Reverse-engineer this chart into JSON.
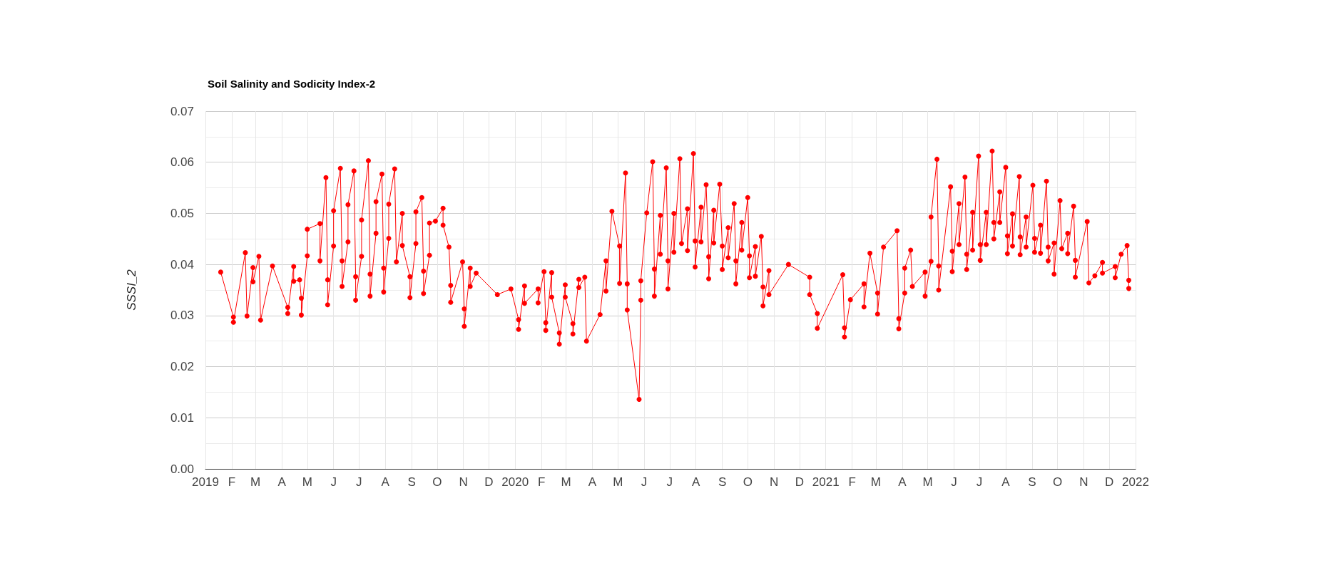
{
  "chart_data": {
    "type": "line",
    "title": "Soil Salinity and Sodicity Index-2",
    "ylabel": "SSSI_2",
    "x": [
      "2019-01-19",
      "2019-02-03",
      "2019-02-03",
      "2019-02-17",
      "2019-02-19",
      "2019-02-26",
      "2019-02-26",
      "2019-03-05",
      "2019-03-07",
      "2019-03-21",
      "2019-04-08",
      "2019-04-08",
      "2019-04-15",
      "2019-04-15",
      "2019-04-22",
      "2019-04-24",
      "2019-04-24",
      "2019-05-01",
      "2019-05-01",
      "2019-05-16",
      "2019-05-16",
      "2019-05-23",
      "2019-05-25",
      "2019-05-25",
      "2019-06-01",
      "2019-06-01",
      "2019-06-09",
      "2019-06-11",
      "2019-06-11",
      "2019-06-18",
      "2019-06-18",
      "2019-06-25",
      "2019-06-27",
      "2019-06-27",
      "2019-07-04",
      "2019-07-04",
      "2019-07-12",
      "2019-07-14",
      "2019-07-14",
      "2019-07-21",
      "2019-07-21",
      "2019-07-28",
      "2019-07-30",
      "2019-07-30",
      "2019-08-05",
      "2019-08-05",
      "2019-08-12",
      "2019-08-14",
      "2019-08-21",
      "2019-08-21",
      "2019-08-30",
      "2019-08-30",
      "2019-09-06",
      "2019-09-06",
      "2019-09-13",
      "2019-09-15",
      "2019-09-15",
      "2019-09-22",
      "2019-09-22",
      "2019-09-29",
      "2019-10-08",
      "2019-10-08",
      "2019-10-15",
      "2019-10-17",
      "2019-10-17",
      "2019-10-31",
      "2019-11-02",
      "2019-11-02",
      "2019-11-09",
      "2019-11-09",
      "2019-11-16",
      "2019-12-11",
      "2019-12-27",
      "2020-01-05",
      "2020-01-05",
      "2020-01-12",
      "2020-01-12",
      "2020-01-28",
      "2020-01-28",
      "2020-02-04",
      "2020-02-06",
      "2020-02-06",
      "2020-02-13",
      "2020-02-13",
      "2020-02-22",
      "2020-02-22",
      "2020-02-29",
      "2020-02-29",
      "2020-03-09",
      "2020-03-09",
      "2020-03-16",
      "2020-03-16",
      "2020-03-23",
      "2020-03-25",
      "2020-04-10",
      "2020-04-17",
      "2020-04-17",
      "2020-04-24",
      "2020-05-03",
      "2020-05-03",
      "2020-05-10",
      "2020-05-12",
      "2020-05-12",
      "2020-05-26",
      "2020-05-28",
      "2020-05-28",
      "2020-06-04",
      "2020-06-11",
      "2020-06-13",
      "2020-06-13",
      "2020-06-20",
      "2020-06-20",
      "2020-06-27",
      "2020-06-29",
      "2020-06-29",
      "2020-07-06",
      "2020-07-06",
      "2020-07-13",
      "2020-07-15",
      "2020-07-22",
      "2020-07-22",
      "2020-07-29",
      "2020-07-31",
      "2020-07-31",
      "2020-08-07",
      "2020-08-07",
      "2020-08-13",
      "2020-08-16",
      "2020-08-16",
      "2020-08-22",
      "2020-08-22",
      "2020-08-29",
      "2020-09-01",
      "2020-09-01",
      "2020-09-08",
      "2020-09-08",
      "2020-09-15",
      "2020-09-17",
      "2020-09-17",
      "2020-09-24",
      "2020-09-24",
      "2020-10-01",
      "2020-10-03",
      "2020-10-03",
      "2020-10-10",
      "2020-10-10",
      "2020-10-17",
      "2020-10-19",
      "2020-10-19",
      "2020-10-26",
      "2020-10-26",
      "2020-11-18",
      "2020-12-13",
      "2020-12-13",
      "2020-12-22",
      "2020-12-22",
      "2021-01-21",
      "2021-01-23",
      "2021-01-23",
      "2021-01-30",
      "2021-02-15",
      "2021-02-15",
      "2021-02-22",
      "2021-03-03",
      "2021-03-03",
      "2021-03-10",
      "2021-03-26",
      "2021-03-28",
      "2021-03-28",
      "2021-04-04",
      "2021-04-04",
      "2021-04-11",
      "2021-04-13",
      "2021-04-28",
      "2021-04-28",
      "2021-05-05",
      "2021-05-05",
      "2021-05-12",
      "2021-05-14",
      "2021-05-14",
      "2021-05-28",
      "2021-05-30",
      "2021-05-30",
      "2021-06-07",
      "2021-06-07",
      "2021-06-14",
      "2021-06-16",
      "2021-06-16",
      "2021-06-23",
      "2021-06-23",
      "2021-06-30",
      "2021-07-02",
      "2021-07-02",
      "2021-07-09",
      "2021-07-09",
      "2021-07-16",
      "2021-07-18",
      "2021-07-18",
      "2021-07-25",
      "2021-07-25",
      "2021-08-01",
      "2021-08-03",
      "2021-08-03",
      "2021-08-09",
      "2021-08-09",
      "2021-08-17",
      "2021-08-18",
      "2021-08-18",
      "2021-08-25",
      "2021-08-25",
      "2021-09-02",
      "2021-09-04",
      "2021-09-04",
      "2021-09-11",
      "2021-09-11",
      "2021-09-18",
      "2021-09-20",
      "2021-09-20",
      "2021-09-27",
      "2021-09-27",
      "2021-10-04",
      "2021-10-06",
      "2021-10-13",
      "2021-10-13",
      "2021-10-20",
      "2021-10-22",
      "2021-10-22",
      "2021-11-05",
      "2021-11-07",
      "2021-11-14",
      "2021-11-23",
      "2021-11-23",
      "2021-12-08",
      "2021-12-08",
      "2021-12-15",
      "2021-12-22",
      "2021-12-24",
      "2021-12-24"
    ],
    "series": [
      {
        "color": "#ff0000",
        "values": [
          0.0385,
          0.0297,
          0.0287,
          0.0423,
          0.0299,
          0.0394,
          0.0366,
          0.0416,
          0.0291,
          0.0397,
          0.0316,
          0.0304,
          0.0396,
          0.0367,
          0.037,
          0.0334,
          0.0301,
          0.0417,
          0.0469,
          0.048,
          0.0407,
          0.057,
          0.037,
          0.0321,
          0.0436,
          0.0505,
          0.0588,
          0.0407,
          0.0357,
          0.0444,
          0.0517,
          0.0583,
          0.0376,
          0.033,
          0.0416,
          0.0487,
          0.0603,
          0.0381,
          0.0338,
          0.0461,
          0.0523,
          0.0577,
          0.0393,
          0.0346,
          0.0451,
          0.0518,
          0.0587,
          0.0405,
          0.05,
          0.0437,
          0.0376,
          0.0335,
          0.0441,
          0.0503,
          0.0531,
          0.0387,
          0.0343,
          0.0418,
          0.0481,
          0.0485,
          0.051,
          0.0477,
          0.0434,
          0.0359,
          0.0326,
          0.0405,
          0.0313,
          0.0279,
          0.0393,
          0.0357,
          0.0383,
          0.0341,
          0.0352,
          0.0292,
          0.0273,
          0.0358,
          0.0324,
          0.0352,
          0.0325,
          0.0386,
          0.0286,
          0.0271,
          0.0384,
          0.0336,
          0.0266,
          0.0244,
          0.036,
          0.0336,
          0.0284,
          0.0264,
          0.0371,
          0.0355,
          0.0375,
          0.025,
          0.0302,
          0.0407,
          0.0348,
          0.0504,
          0.0436,
          0.0363,
          0.0579,
          0.0362,
          0.0311,
          0.0136,
          0.033,
          0.0368,
          0.0501,
          0.0601,
          0.0391,
          0.0338,
          0.0496,
          0.042,
          0.0589,
          0.0407,
          0.0352,
          0.05,
          0.0424,
          0.0607,
          0.0441,
          0.0509,
          0.0427,
          0.0617,
          0.0446,
          0.0395,
          0.0512,
          0.0444,
          0.0556,
          0.0415,
          0.0372,
          0.0506,
          0.0442,
          0.0557,
          0.0436,
          0.039,
          0.0472,
          0.0413,
          0.0519,
          0.0407,
          0.0362,
          0.0482,
          0.0428,
          0.0531,
          0.0417,
          0.0374,
          0.0435,
          0.0377,
          0.0455,
          0.0356,
          0.0319,
          0.0388,
          0.0341,
          0.04,
          0.0375,
          0.0341,
          0.0304,
          0.0275,
          0.038,
          0.0276,
          0.0258,
          0.0331,
          0.0362,
          0.0317,
          0.0422,
          0.0344,
          0.0303,
          0.0434,
          0.0466,
          0.0294,
          0.0274,
          0.0344,
          0.0393,
          0.0428,
          0.0357,
          0.0385,
          0.0338,
          0.0406,
          0.0493,
          0.0606,
          0.0397,
          0.035,
          0.0552,
          0.0426,
          0.0386,
          0.0519,
          0.0439,
          0.0571,
          0.042,
          0.039,
          0.0502,
          0.0428,
          0.0612,
          0.0439,
          0.0408,
          0.0502,
          0.0439,
          0.0622,
          0.0482,
          0.045,
          0.0542,
          0.0482,
          0.059,
          0.0456,
          0.0421,
          0.0499,
          0.0436,
          0.0572,
          0.0454,
          0.0419,
          0.0493,
          0.0434,
          0.0555,
          0.0451,
          0.0424,
          0.0477,
          0.0422,
          0.0563,
          0.0434,
          0.0407,
          0.0442,
          0.0381,
          0.0525,
          0.0431,
          0.0461,
          0.0421,
          0.0514,
          0.0408,
          0.0375,
          0.0484,
          0.0364,
          0.0378,
          0.0404,
          0.0383,
          0.0396,
          0.0374,
          0.042,
          0.0437,
          0.0369,
          0.0353
        ]
      }
    ],
    "xlim": [
      "2019-01-01",
      "2022-01-01"
    ],
    "xticks": [
      {
        "value": "2019-01-01",
        "label": "2019"
      },
      {
        "value": "2019-02-01",
        "label": "F"
      },
      {
        "value": "2019-03-01",
        "label": "M"
      },
      {
        "value": "2019-04-01",
        "label": "A"
      },
      {
        "value": "2019-05-01",
        "label": "M"
      },
      {
        "value": "2019-06-01",
        "label": "J"
      },
      {
        "value": "2019-07-01",
        "label": "J"
      },
      {
        "value": "2019-08-01",
        "label": "A"
      },
      {
        "value": "2019-09-01",
        "label": "S"
      },
      {
        "value": "2019-10-01",
        "label": "O"
      },
      {
        "value": "2019-11-01",
        "label": "N"
      },
      {
        "value": "2019-12-01",
        "label": "D"
      },
      {
        "value": "2020-01-01",
        "label": "2020"
      },
      {
        "value": "2020-02-01",
        "label": "F"
      },
      {
        "value": "2020-03-01",
        "label": "M"
      },
      {
        "value": "2020-04-01",
        "label": "A"
      },
      {
        "value": "2020-05-01",
        "label": "M"
      },
      {
        "value": "2020-06-01",
        "label": "J"
      },
      {
        "value": "2020-07-01",
        "label": "J"
      },
      {
        "value": "2020-08-01",
        "label": "A"
      },
      {
        "value": "2020-09-01",
        "label": "S"
      },
      {
        "value": "2020-10-01",
        "label": "O"
      },
      {
        "value": "2020-11-01",
        "label": "N"
      },
      {
        "value": "2020-12-01",
        "label": "D"
      },
      {
        "value": "2021-01-01",
        "label": "2021"
      },
      {
        "value": "2021-02-01",
        "label": "F"
      },
      {
        "value": "2021-03-01",
        "label": "M"
      },
      {
        "value": "2021-04-01",
        "label": "A"
      },
      {
        "value": "2021-05-01",
        "label": "M"
      },
      {
        "value": "2021-06-01",
        "label": "J"
      },
      {
        "value": "2021-07-01",
        "label": "J"
      },
      {
        "value": "2021-08-01",
        "label": "A"
      },
      {
        "value": "2021-09-01",
        "label": "S"
      },
      {
        "value": "2021-10-01",
        "label": "O"
      },
      {
        "value": "2021-11-01",
        "label": "N"
      },
      {
        "value": "2021-12-01",
        "label": "D"
      },
      {
        "value": "2022-01-01",
        "label": "2022"
      }
    ],
    "ylim": [
      0,
      0.07
    ],
    "yticks": [
      {
        "value": 0,
        "label": "0.00"
      },
      {
        "value": 0.01,
        "label": "0.01"
      },
      {
        "value": 0.02,
        "label": "0.02"
      },
      {
        "value": 0.03,
        "label": "0.03"
      },
      {
        "value": 0.04,
        "label": "0.04"
      },
      {
        "value": 0.05,
        "label": "0.05"
      },
      {
        "value": 0.06,
        "label": "0.06"
      },
      {
        "value": 0.07,
        "label": "0.07"
      }
    ],
    "grid": true,
    "marker": "circle",
    "line_style": "solid"
  }
}
